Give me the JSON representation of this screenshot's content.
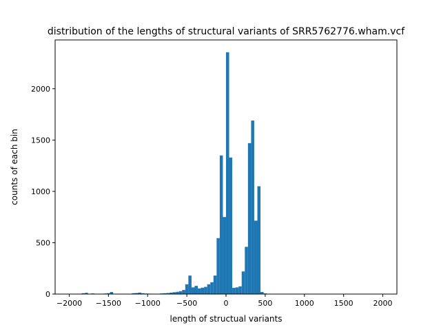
{
  "chart_data": {
    "type": "bar",
    "title": "distribution of the lengths of structural variants of SRR5762776.wham.vcf",
    "xlabel": "length of structual variants",
    "ylabel": "counts of each bin",
    "xlim": [
      -2180,
      2180
    ],
    "ylim": [
      0,
      2475
    ],
    "x_ticks": [
      -2000,
      -1500,
      -1000,
      -500,
      0,
      500,
      1000,
      1500,
      2000
    ],
    "x_tick_labels": [
      "−2000",
      "−1500",
      "−1000",
      "−500",
      "0",
      "500",
      "1000",
      "1500",
      "2000"
    ],
    "y_ticks": [
      0,
      500,
      1000,
      1500,
      2000
    ],
    "y_tick_labels": [
      "0",
      "500",
      "1000",
      "1500",
      "2000"
    ],
    "bar_color": "#1f77b4",
    "bin_width": 40,
    "bins": [
      {
        "x": -1820,
        "value": 8
      },
      {
        "x": -1780,
        "value": 12
      },
      {
        "x": -1700,
        "value": 6
      },
      {
        "x": -1540,
        "value": 5
      },
      {
        "x": -1500,
        "value": 8
      },
      {
        "x": -1460,
        "value": 20
      },
      {
        "x": -1180,
        "value": 8
      },
      {
        "x": -1140,
        "value": 10
      },
      {
        "x": -1100,
        "value": 14
      },
      {
        "x": -1060,
        "value": 8
      },
      {
        "x": -1020,
        "value": 5
      },
      {
        "x": -980,
        "value": 4
      },
      {
        "x": -820,
        "value": 6
      },
      {
        "x": -780,
        "value": 8
      },
      {
        "x": -740,
        "value": 10
      },
      {
        "x": -700,
        "value": 14
      },
      {
        "x": -660,
        "value": 18
      },
      {
        "x": -620,
        "value": 22
      },
      {
        "x": -580,
        "value": 28
      },
      {
        "x": -540,
        "value": 40
      },
      {
        "x": -500,
        "value": 95
      },
      {
        "x": -460,
        "value": 180
      },
      {
        "x": -420,
        "value": 65
      },
      {
        "x": -380,
        "value": 80
      },
      {
        "x": -340,
        "value": 55
      },
      {
        "x": -300,
        "value": 62
      },
      {
        "x": -260,
        "value": 70
      },
      {
        "x": -220,
        "value": 95
      },
      {
        "x": -180,
        "value": 115
      },
      {
        "x": -140,
        "value": 180
      },
      {
        "x": -100,
        "value": 545
      },
      {
        "x": -60,
        "value": 1350
      },
      {
        "x": -20,
        "value": 750
      },
      {
        "x": 20,
        "value": 2355
      },
      {
        "x": 60,
        "value": 1330
      },
      {
        "x": 100,
        "value": 60
      },
      {
        "x": 140,
        "value": 65
      },
      {
        "x": 180,
        "value": 75
      },
      {
        "x": 220,
        "value": 220
      },
      {
        "x": 260,
        "value": 460
      },
      {
        "x": 300,
        "value": 1470
      },
      {
        "x": 340,
        "value": 1690
      },
      {
        "x": 380,
        "value": 715
      },
      {
        "x": 420,
        "value": 1050
      },
      {
        "x": 460,
        "value": 20
      },
      {
        "x": 500,
        "value": 6
      }
    ]
  }
}
